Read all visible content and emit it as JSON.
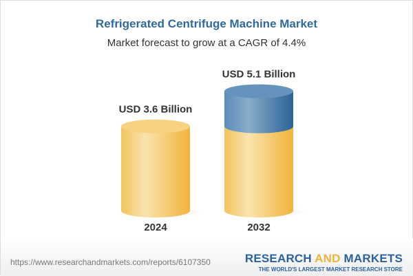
{
  "title": "Refrigerated Centrifuge Machine Market",
  "subtitle": "Market forecast to grow at a CAGR of 4.4%",
  "chart_data": {
    "type": "bar",
    "style": "3d-cylinder",
    "categories": [
      "2024",
      "2032"
    ],
    "values": [
      3.6,
      5.1
    ],
    "data_labels": [
      "USD 3.6 Billion",
      "USD 5.1 Billion"
    ],
    "unit": "USD Billion",
    "colors": {
      "base": "#f3c35e",
      "growth": "#4a80b0"
    },
    "grid": false
  },
  "footer": {
    "url": "https://www.researchandmarkets.com/reports/6107350",
    "logo_part1": "RESEARCH ",
    "logo_part2": "AND",
    "logo_part3": " MARKETS",
    "tagline": "THE WORLD'S LARGEST MARKET RESEARCH STORE"
  }
}
